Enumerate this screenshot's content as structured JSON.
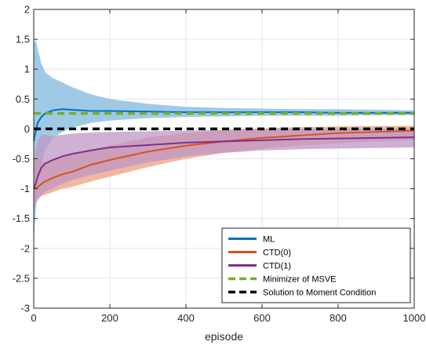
{
  "chart_data": {
    "type": "line",
    "title": "",
    "xlabel": "episode",
    "ylabel": "",
    "xlim": [
      0,
      1000
    ],
    "ylim": [
      -3,
      2
    ],
    "xticks": [
      0,
      200,
      400,
      600,
      800,
      1000
    ],
    "yticks": [
      -3,
      -2.5,
      -2,
      -1.5,
      -1,
      -0.5,
      0,
      0.5,
      1,
      1.5,
      2
    ],
    "grid": true,
    "legend_position": "bottom-right",
    "colors": {
      "ml": "#0072BD",
      "ml_band": "#7FB8DE",
      "ctd0": "#D95319",
      "ctd0_band": "#EC9F7F",
      "ctd1": "#7E2F8E",
      "ctd1_band": "#BE97C6",
      "msve": "#77AC30",
      "moment": "#000000"
    },
    "series": [
      {
        "name": "ML",
        "style": "solid",
        "x": [
          0,
          5,
          10,
          20,
          30,
          50,
          75,
          100,
          150,
          200,
          300,
          400,
          500,
          600,
          700,
          800,
          900,
          1000
        ],
        "y": [
          -0.2,
          -0.05,
          0.1,
          0.2,
          0.26,
          0.31,
          0.33,
          0.32,
          0.3,
          0.3,
          0.29,
          0.28,
          0.28,
          0.28,
          0.28,
          0.27,
          0.27,
          0.27
        ],
        "lower": [
          -1.9,
          -1.4,
          -1.0,
          -0.6,
          -0.35,
          -0.15,
          -0.05,
          0.02,
          0.1,
          0.14,
          0.18,
          0.2,
          0.21,
          0.22,
          0.22,
          0.22,
          0.23,
          0.23
        ],
        "upper": [
          1.4,
          1.5,
          1.35,
          1.1,
          0.95,
          0.85,
          0.78,
          0.7,
          0.58,
          0.5,
          0.42,
          0.37,
          0.35,
          0.34,
          0.33,
          0.33,
          0.32,
          0.31
        ]
      },
      {
        "name": "CTD(0)",
        "style": "solid",
        "x": [
          0,
          5,
          10,
          20,
          30,
          50,
          75,
          100,
          150,
          200,
          300,
          400,
          500,
          600,
          700,
          800,
          900,
          1000
        ],
        "y": [
          -0.95,
          -1.0,
          -0.98,
          -0.92,
          -0.88,
          -0.82,
          -0.76,
          -0.72,
          -0.6,
          -0.52,
          -0.38,
          -0.28,
          -0.21,
          -0.15,
          -0.11,
          -0.07,
          -0.05,
          -0.03
        ],
        "lower": [
          -1.5,
          -1.2,
          -1.15,
          -1.12,
          -1.1,
          -1.06,
          -1.0,
          -0.97,
          -0.88,
          -0.8,
          -0.64,
          -0.5,
          -0.4,
          -0.33,
          -0.28,
          -0.24,
          -0.21,
          -0.19
        ],
        "upper": [
          -0.4,
          -0.55,
          -0.55,
          -0.55,
          -0.55,
          -0.52,
          -0.48,
          -0.44,
          -0.35,
          -0.28,
          -0.14,
          -0.07,
          -0.02,
          0.01,
          0.03,
          0.04,
          0.05,
          0.05
        ]
      },
      {
        "name": "CTD(1)",
        "style": "solid",
        "x": [
          0,
          5,
          10,
          20,
          30,
          50,
          75,
          100,
          150,
          200,
          300,
          400,
          500,
          600,
          700,
          800,
          900,
          1000
        ],
        "y": [
          -1.0,
          -0.92,
          -0.8,
          -0.65,
          -0.58,
          -0.52,
          -0.46,
          -0.42,
          -0.36,
          -0.31,
          -0.27,
          -0.23,
          -0.21,
          -0.19,
          -0.17,
          -0.16,
          -0.15,
          -0.14
        ],
        "lower": [
          -1.3,
          -1.25,
          -1.2,
          -1.12,
          -1.05,
          -1.0,
          -0.92,
          -0.86,
          -0.77,
          -0.7,
          -0.56,
          -0.46,
          -0.4,
          -0.36,
          -0.34,
          -0.33,
          -0.32,
          -0.31
        ],
        "upper": [
          -0.7,
          -0.35,
          -0.2,
          -0.1,
          -0.1,
          -0.12,
          -0.1,
          -0.08,
          -0.06,
          -0.05,
          -0.04,
          -0.03,
          -0.02,
          -0.01,
          0.0,
          0.0,
          0.0,
          0.0
        ]
      },
      {
        "name": "Minimizer of MSVE",
        "style": "dashed",
        "x": [
          0,
          1000
        ],
        "y": [
          0.26,
          0.26
        ]
      },
      {
        "name": "Solution to Moment Condition",
        "style": "dashed",
        "x": [
          0,
          1000
        ],
        "y": [
          0.0,
          0.0
        ]
      }
    ]
  }
}
